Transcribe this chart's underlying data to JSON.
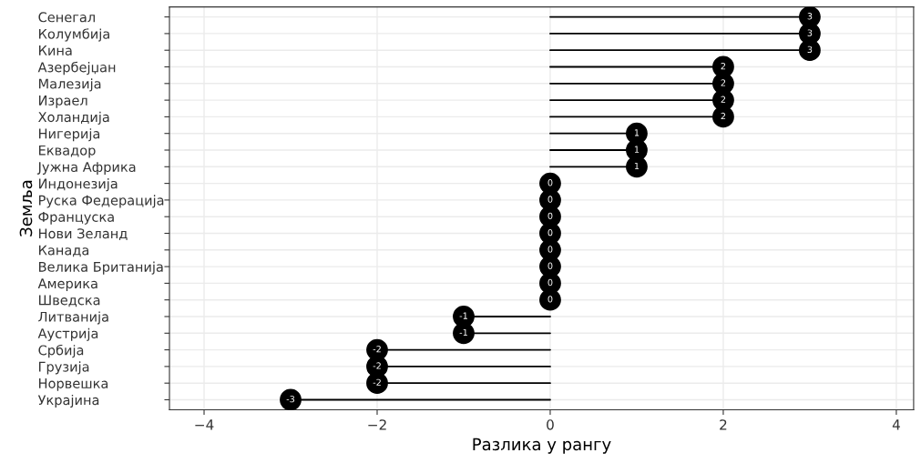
{
  "chart_data": {
    "type": "lollipop",
    "orientation": "horizontal",
    "xlabel": "Разлика у рангу",
    "ylabel": "Земља",
    "categories": [
      "Сенегал",
      "Колумбија",
      "Кина",
      "Азербејџан",
      "Малезија",
      "Израел",
      "Холандија",
      "Нигерија",
      "Еквадор",
      "Јужна Африка",
      "Индонезија",
      "Руска Федерација",
      "Француска",
      "Нови Зеланд",
      "Канада",
      "Велика Британија",
      "Америка",
      "Шведска",
      "Литванија",
      "Аустрија",
      "Србија",
      "Грузија",
      "Норвешка",
      "Украјина"
    ],
    "values": [
      3,
      3,
      3,
      2,
      2,
      2,
      2,
      1,
      1,
      1,
      0,
      0,
      0,
      0,
      0,
      0,
      0,
      0,
      -1,
      -1,
      -2,
      -2,
      -2,
      -3
    ],
    "color": "#000000",
    "marker": "circle",
    "data_labels": true,
    "xlim": [
      -4.4,
      4.2
    ],
    "xticks": [
      {
        "value": -4,
        "label": "−4"
      },
      {
        "value": -2,
        "label": "−2"
      },
      0,
      2,
      4
    ],
    "grid": true
  }
}
